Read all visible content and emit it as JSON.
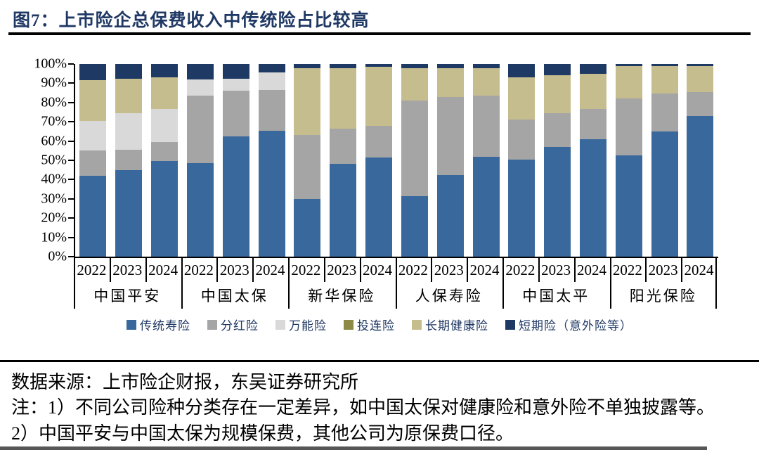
{
  "title": "图7：上市险企总保费收入中传统险占比较高",
  "source": "数据来源：上市险企财报，东吴证券研究所",
  "notes": [
    "注：1）不同公司险种分类存在一定差异，如中国太保对健康险和意外险不单独披露等。",
    "2）中国平安与中国太保为规模保费，其他公司为原保费口径。"
  ],
  "colors": {
    "title": "#1F3864",
    "axis": "#000000",
    "legend_text": "#1F3864"
  },
  "chart_data": {
    "type": "bar",
    "stacked": true,
    "percent": true,
    "ylim": [
      0,
      100
    ],
    "ytick_step": 10,
    "yticks": [
      "100%",
      "90%",
      "80%",
      "70%",
      "60%",
      "50%",
      "40%",
      "30%",
      "20%",
      "10%",
      "0%"
    ],
    "grid": false,
    "legend_position": "bottom",
    "series": [
      {
        "name": "传统寿险",
        "key": "traditional-life",
        "color": "#38689C"
      },
      {
        "name": "分红险",
        "key": "participating",
        "color": "#A5A5A5"
      },
      {
        "name": "万能险",
        "key": "universal",
        "color": "#D9D9D9"
      },
      {
        "name": "投连险",
        "key": "investment-linked",
        "color": "#8C8A45"
      },
      {
        "name": "长期健康险",
        "key": "long-term-health",
        "color": "#C6BD8E"
      },
      {
        "name": "短期险（意外险等）",
        "key": "short-term-accident",
        "color": "#1E3A64"
      }
    ],
    "groups": [
      {
        "company": "中国平安",
        "bars": [
          {
            "year": "2022",
            "values": [
              42,
              13,
              15.5,
              0,
              21,
              8.5
            ]
          },
          {
            "year": "2023",
            "values": [
              45,
              10.5,
              19,
              0,
              18,
              7.5
            ]
          },
          {
            "year": "2024",
            "values": [
              49.5,
              10,
              17,
              0,
              16.5,
              7
            ]
          }
        ]
      },
      {
        "company": "中国太保",
        "bars": [
          {
            "year": "2022",
            "values": [
              48.5,
              35,
              8.5,
              0,
              0,
              8
            ]
          },
          {
            "year": "2023",
            "values": [
              62.5,
              23.5,
              6.5,
              0,
              0,
              7.5
            ]
          },
          {
            "year": "2024",
            "values": [
              65.5,
              21,
              9,
              0,
              0,
              4.5
            ]
          }
        ]
      },
      {
        "company": "新华保险",
        "bars": [
          {
            "year": "2022",
            "values": [
              30,
              33,
              0,
              0,
              35,
              2
            ]
          },
          {
            "year": "2023",
            "values": [
              48,
              18.5,
              0,
              0,
              31.5,
              2
            ]
          },
          {
            "year": "2024",
            "values": [
              51.5,
              16.5,
              0,
              0,
              30.5,
              1.5
            ]
          }
        ]
      },
      {
        "company": "人保寿险",
        "bars": [
          {
            "year": "2022",
            "values": [
              31.5,
              49.5,
              0,
              0,
              17,
              2
            ]
          },
          {
            "year": "2023",
            "values": [
              42.5,
              40.5,
              0,
              0,
              15,
              2
            ]
          },
          {
            "year": "2024",
            "values": [
              52,
              31.5,
              0,
              0,
              14.5,
              2
            ]
          }
        ]
      },
      {
        "company": "中国太平",
        "bars": [
          {
            "year": "2022",
            "values": [
              50.5,
              20.5,
              0,
              0,
              22,
              7
            ]
          },
          {
            "year": "2023",
            "values": [
              57,
              17.5,
              0,
              0,
              19.5,
              6
            ]
          },
          {
            "year": "2024",
            "values": [
              61,
              15.5,
              0,
              0,
              18.5,
              5
            ]
          }
        ]
      },
      {
        "company": "阳光保险",
        "bars": [
          {
            "year": "2022",
            "values": [
              52.5,
              29.5,
              0,
              0,
              17,
              1
            ]
          },
          {
            "year": "2023",
            "values": [
              65,
              19.5,
              0,
              0,
              14.5,
              1
            ]
          },
          {
            "year": "2024",
            "values": [
              73,
              12.5,
              0,
              0,
              13.5,
              1
            ]
          }
        ]
      }
    ]
  }
}
